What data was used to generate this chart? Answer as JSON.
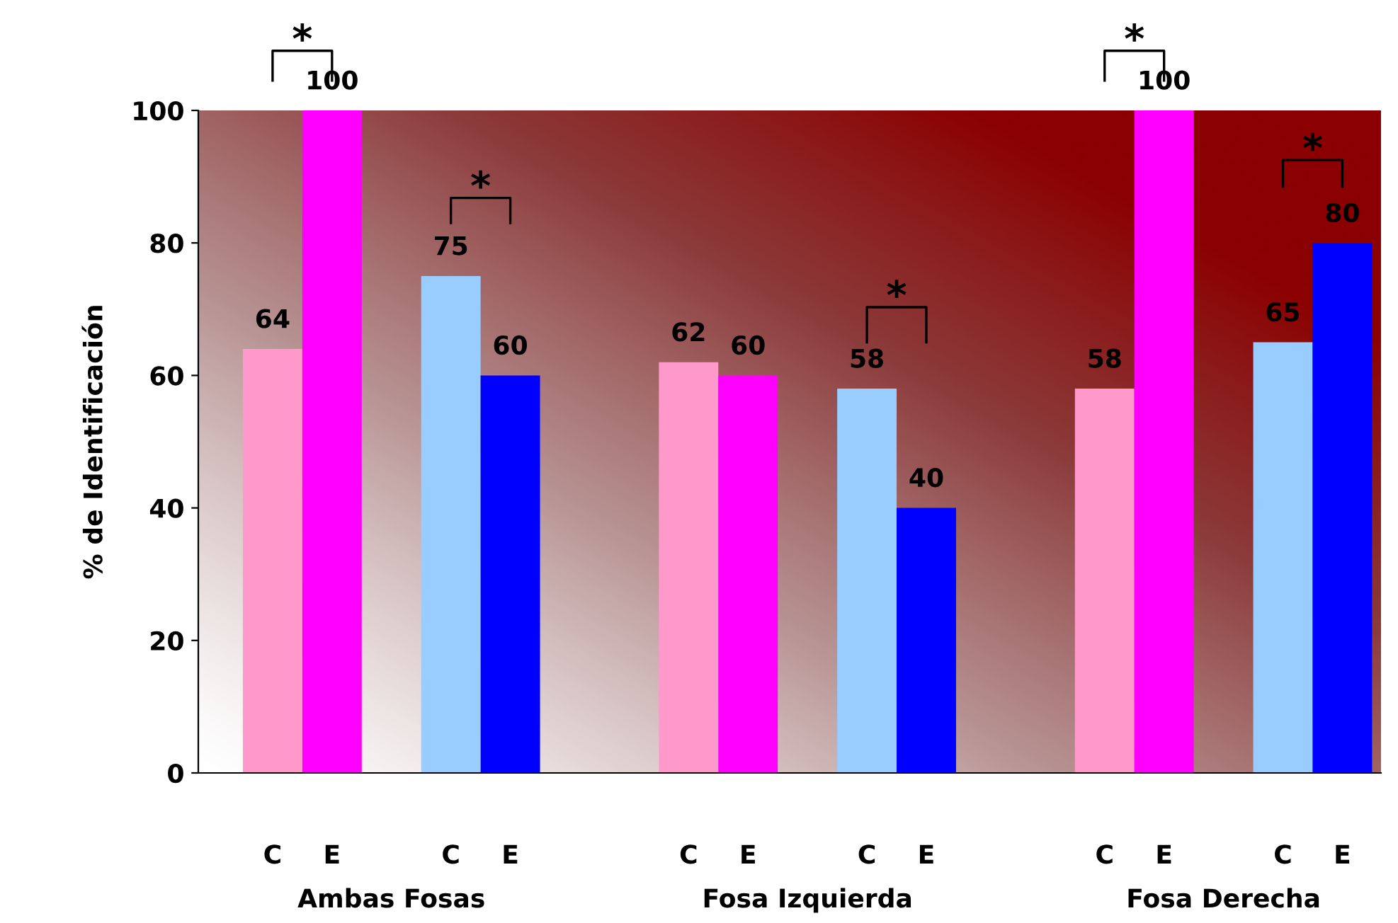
{
  "chart_data": {
    "type": "bar",
    "ylabel": "% de Identificación",
    "categories": [
      null,
      null,
      null,
      null,
      null,
      null
    ],
    "series": [
      {
        "name": "C",
        "colors": [
          "#ff99cc",
          "#99ccff",
          "#ff99cc",
          "#99ccff",
          "#ff99cc",
          "#99ccff"
        ],
        "values": [
          64,
          75,
          62,
          58,
          58,
          65
        ]
      },
      {
        "name": "E",
        "colors": [
          "#ff00ff",
          "#0000ff",
          "#ff00ff",
          "#0000ff",
          "#ff00ff",
          "#0000ff"
        ],
        "values": [
          100,
          60,
          60,
          40,
          100,
          80
        ]
      }
    ],
    "ylim": [
      0,
      100
    ],
    "yticks": [
      0,
      20,
      40,
      60,
      80,
      100
    ],
    "grid": false,
    "data_labels": true,
    "annotations": [
      "*",
      "*",
      "*",
      "*",
      "*",
      "Ambas Fosas",
      "Fosa Izquierda",
      "Fosa Derecha"
    ]
  }
}
